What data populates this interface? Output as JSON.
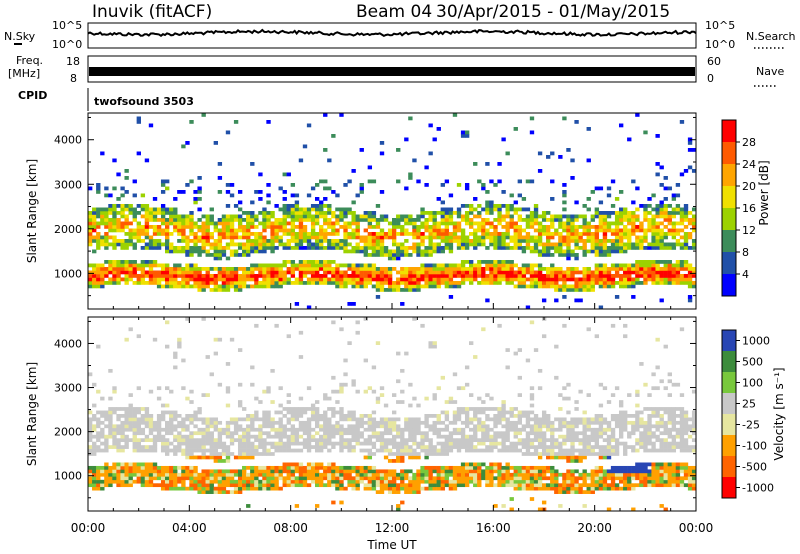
{
  "header": {
    "station": "Inuvik (fitACF)",
    "beam": "Beam 04",
    "date_range": "30/Apr/2015 - 01/May/2015"
  },
  "top_panels": {
    "nsky": {
      "left_label": "N.Sky",
      "right_label": "N.Search",
      "left_ticks": [
        "10^5",
        "10^0"
      ],
      "right_ticks": [
        "10^5",
        "10^0"
      ]
    },
    "freq": {
      "left_label_1": "Freq.",
      "left_label_2": "[MHz]",
      "left_ticks": [
        "18",
        "8"
      ],
      "right_label": "Nave",
      "right_ticks": [
        "60",
        "0"
      ]
    },
    "cpid": {
      "label": "CPID",
      "value": "twofsound 3503"
    }
  },
  "colors": {
    "power": [
      "#0000ff",
      "#2050a8",
      "#3c8c5a",
      "#9cd200",
      "#f0e000",
      "#ffa500",
      "#ff5a00",
      "#ff0000"
    ],
    "velocity": [
      "#ff0000",
      "#ff6400",
      "#ffa000",
      "#e6e6a0",
      "#c8c8c8",
      "#78c83c",
      "#3c8c3c",
      "#2846b4"
    ]
  },
  "chart_data": [
    {
      "type": "heatmap",
      "name": "power",
      "ylabel": "Slant Range [km]",
      "yticks": [
        "1000",
        "2000",
        "3000",
        "4000"
      ],
      "ylim": [
        200,
        4600
      ],
      "xlim": [
        0,
        24
      ],
      "colorbar": {
        "label": "Power [dB]",
        "ticks": [
          "4",
          "8",
          "12",
          "16",
          "20",
          "24",
          "28"
        ]
      },
      "main_echo_band_km": [
        700,
        1200
      ],
      "upper_echo_band_km": [
        1500,
        2400
      ]
    },
    {
      "type": "heatmap",
      "name": "velocity",
      "ylabel": "Slant Range [km]",
      "yticks": [
        "1000",
        "2000",
        "3000",
        "4000"
      ],
      "ylim": [
        200,
        4600
      ],
      "xlim": [
        0,
        24
      ],
      "xlabel": "Time UT",
      "xticks": [
        "00:00",
        "04:00",
        "08:00",
        "12:00",
        "16:00",
        "20:00",
        "00:00"
      ],
      "colorbar": {
        "label": "Velocity [m s⁻¹]",
        "ticks": [
          "1000",
          "500",
          "100",
          "25",
          "-25",
          "-100",
          "-500",
          "-1000"
        ]
      }
    }
  ]
}
